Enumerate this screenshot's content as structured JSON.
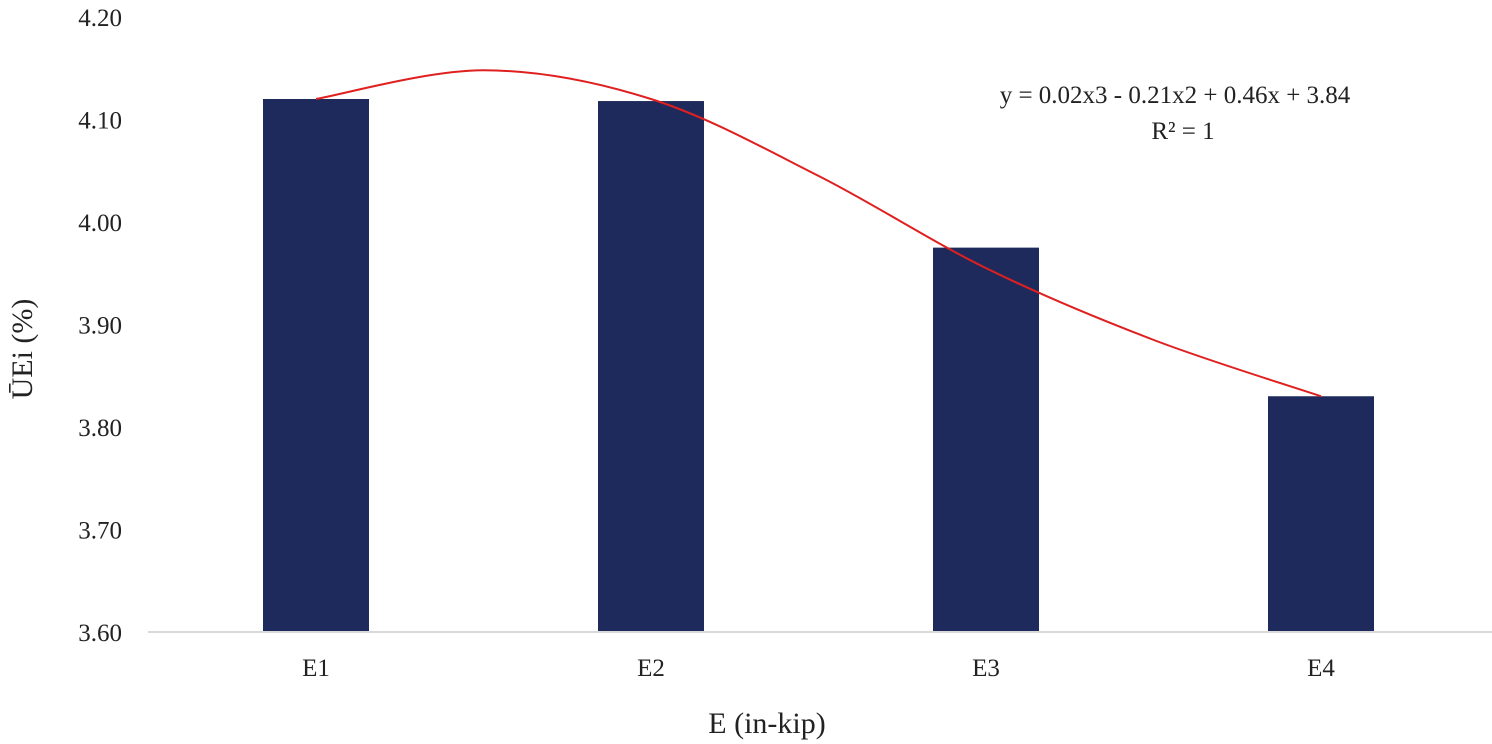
{
  "chart_data": {
    "type": "bar",
    "categories": [
      "E1",
      "E2",
      "E3",
      "E4"
    ],
    "values": [
      4.12,
      4.118,
      3.975,
      3.83
    ],
    "xlabel": "E (in-kip)",
    "ylabel": "ŪEi (%)",
    "ylim": [
      3.6,
      4.2
    ],
    "yticks": [
      "3.60",
      "3.70",
      "3.80",
      "3.90",
      "4.00",
      "4.10",
      "4.20"
    ],
    "grid": false,
    "bar_color": "#1f2a5c",
    "trendline": {
      "type": "polynomial",
      "order": 3,
      "color": "#e02020",
      "points": [
        {
          "x": 1.0,
          "y": 4.12
        },
        {
          "x": 1.5,
          "y": 4.148
        },
        {
          "x": 2.0,
          "y": 4.12
        },
        {
          "x": 2.5,
          "y": 4.045
        },
        {
          "x": 3.0,
          "y": 3.955
        },
        {
          "x": 3.5,
          "y": 3.885
        },
        {
          "x": 4.0,
          "y": 3.83
        }
      ],
      "equation": "y = 0.02x3 - 0.21x2 + 0.46x + 3.84",
      "r_squared": "R² = 1"
    }
  }
}
